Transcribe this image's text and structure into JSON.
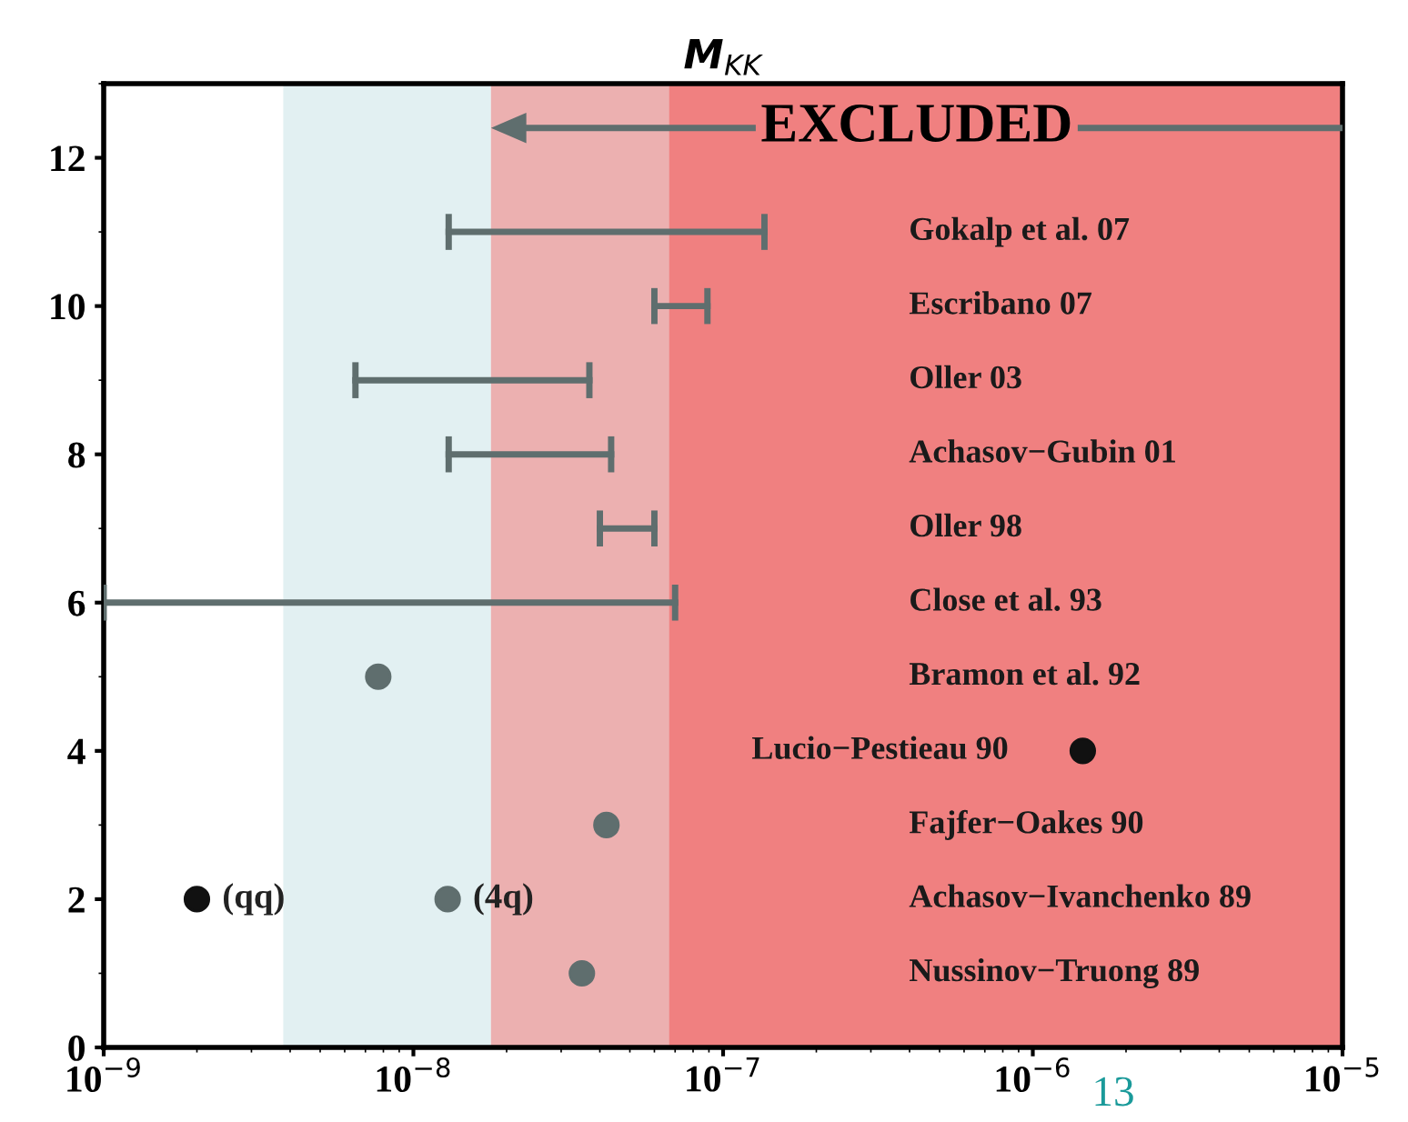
{
  "chart_data": {
    "type": "line",
    "title": "M$_{KK}$",
    "series": [
      {
        "color": "#5f6e6e",
        "marker": "none",
        "x": [
          1.3e-08,
          1.36e-07
        ],
        "values": [
          11,
          11
        ]
      },
      {
        "color": "#5f6e6e",
        "marker": "none",
        "x": [
          6e-08,
          8.9e-08
        ],
        "values": [
          10,
          10
        ]
      },
      {
        "color": "#5f6e6e",
        "marker": "none",
        "x": [
          6.5e-09,
          3.7e-08
        ],
        "values": [
          9,
          9
        ]
      },
      {
        "color": "#5f6e6e",
        "marker": "none",
        "x": [
          1.3e-08,
          4.35e-08
        ],
        "values": [
          8,
          8
        ]
      },
      {
        "color": "#5f6e6e",
        "marker": "none",
        "x": [
          4e-08,
          6e-08
        ],
        "values": [
          7,
          7
        ]
      },
      {
        "color": "#5f6e6e",
        "marker": "none",
        "x": [
          1e-09,
          7e-08
        ],
        "values": [
          6,
          6
        ]
      },
      {
        "type": "scatter",
        "marker": "circle",
        "color": "#5f6e6e",
        "x": [
          7.7e-09
        ],
        "values": [
          5
        ]
      },
      {
        "type": "scatter",
        "marker": "circle",
        "color": "#111111",
        "x": [
          1.45e-06
        ],
        "values": [
          4
        ]
      },
      {
        "type": "scatter",
        "marker": "circle",
        "color": "#5f6e6e",
        "x": [
          4.2e-08
        ],
        "values": [
          3
        ]
      },
      {
        "type": "scatter",
        "marker": "circle",
        "colors": [
          "#111111",
          "#5f6e6e"
        ],
        "x": [
          2e-09,
          1.29e-08
        ],
        "values": [
          2,
          2
        ]
      },
      {
        "type": "scatter",
        "marker": "circle",
        "color": "#5f6e6e",
        "x": [
          3.5e-08
        ],
        "values": [
          1
        ]
      }
    ],
    "xlim": [
      1e-09,
      1e-05
    ],
    "ylim": [
      0,
      13
    ],
    "log": "x",
    "xticks": [
      {
        "value": 1e-09,
        "label": "10$^{−9}$"
      },
      {
        "value": 1e-08,
        "label": "10$^{−8}$"
      },
      {
        "value": 1e-07,
        "label": "10$^{−7}$"
      },
      {
        "value": 1e-06,
        "label": "10$^{−6}$"
      },
      {
        "value": 1e-05,
        "label": "10$^{−5}$"
      }
    ],
    "yticks": [
      0,
      2,
      4,
      6,
      8,
      10,
      12
    ],
    "bands": [
      {
        "axis": "x",
        "from": 3.8e-09,
        "to": 1.78e-08,
        "color": "#e2f0f2"
      },
      {
        "axis": "x",
        "from": 1.78e-08,
        "to": 1e-05,
        "color": "#ecb0b0",
        "label": "EXCLUDED"
      },
      {
        "axis": "x",
        "from": 6.7e-08,
        "to": 1e-05,
        "color": "#f08080"
      }
    ],
    "annotations": [
      "Gokalp et al. 07",
      "Escribano 07",
      "Oller 03",
      "Achasov−Gubin 01",
      "Oller 98",
      "Close et al. 93",
      "Bramon et al. 92",
      "Lucio−Pestieau 90",
      "Fajfer−Oakes 90",
      "Achasov−Ivanchenko 89",
      "Nussinov−Truong 89",
      {
        "text": "(qq)",
        "x": 2e-09,
        "y": 2
      },
      {
        "text": "(4q)",
        "x": 1.29e-08,
        "y": 2
      },
      "13"
    ],
    "grid": false,
    "legend": false
  }
}
